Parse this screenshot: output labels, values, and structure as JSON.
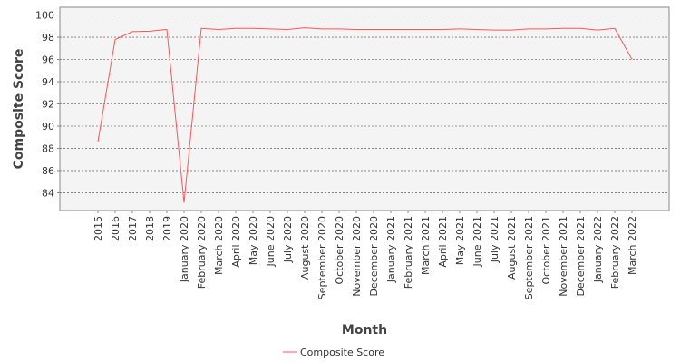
{
  "chart_data": {
    "type": "line",
    "x_label": "Month",
    "y_label": "Composite Score",
    "categories": [
      "2015",
      "2016",
      "2017",
      "2018",
      "2019",
      "January 2020",
      "February 2020",
      "March 2020",
      "April 2020",
      "May 2020",
      "June 2020",
      "July 2020",
      "August 2020",
      "September 2020",
      "October 2020",
      "November 2020",
      "December 2020",
      "January 2021",
      "February 2021",
      "March 2021",
      "April 2021",
      "May 2021",
      "June 2021",
      "July 2021",
      "August 2021",
      "September 2021",
      "October 2021",
      "November 2021",
      "December 2021",
      "January 2022",
      "February 2022",
      "March 2022"
    ],
    "series": [
      {
        "name": "Composite Score",
        "color": "#ff5555",
        "values": [
          88.6,
          97.8,
          98.5,
          98.55,
          98.7,
          83.1,
          98.8,
          98.7,
          98.8,
          98.8,
          98.75,
          98.7,
          98.85,
          98.75,
          98.75,
          98.7,
          98.7,
          98.7,
          98.7,
          98.7,
          98.7,
          98.75,
          98.7,
          98.65,
          98.65,
          98.75,
          98.75,
          98.8,
          98.8,
          98.65,
          98.8,
          96.0
        ]
      }
    ],
    "ylim": [
      82.4,
      100.7
    ],
    "yticks": [
      84,
      86,
      88,
      90,
      92,
      94,
      96,
      98,
      100
    ],
    "grid": true,
    "legend": "bottom"
  }
}
